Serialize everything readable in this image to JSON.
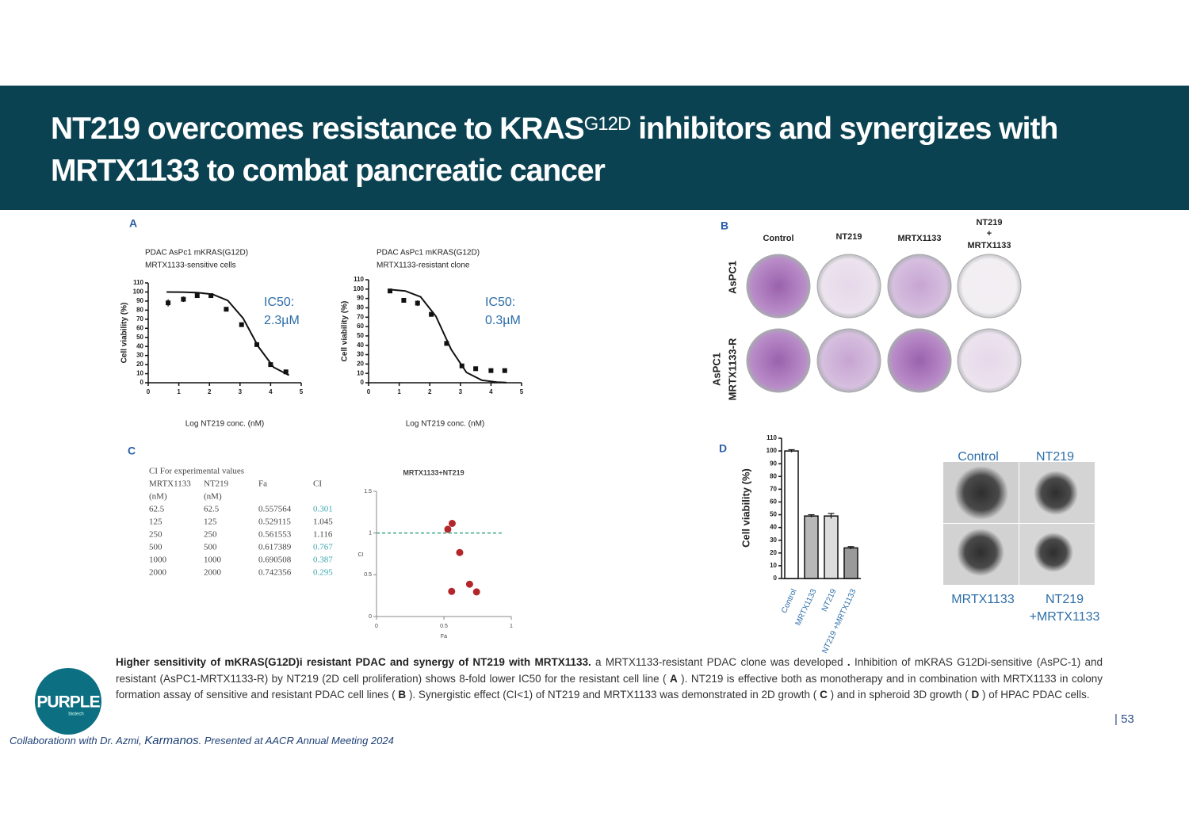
{
  "header": {
    "title_start": "NT219 overcomes resistance to KRAS",
    "title_superscript": "G12D",
    "title_end": "inhibitors and synergizes with MRTX1133 to combat pancreatic cancer"
  },
  "panel_a": {
    "letter": "A",
    "charts": [
      {
        "type": "scatter",
        "subtitle": [
          "PDAC AsPc1 mKRAS(G12D)",
          "MRTX1133-sensitive cells"
        ],
        "y_label": "Cell viability (%)",
        "x_label": "Log NT219 conc. (nM)",
        "annotation": [
          "IC50:",
          "2.3µM"
        ],
        "xlim": [
          0,
          5
        ],
        "xticks": [
          0,
          1,
          2,
          3,
          4,
          5
        ],
        "ylim": [
          0,
          110
        ],
        "yticks": [
          0,
          10,
          20,
          30,
          40,
          50,
          60,
          70,
          80,
          90,
          100,
          110
        ],
        "x": [
          0.65,
          1.15,
          1.6,
          2.05,
          2.55,
          3.05,
          3.55,
          4.0,
          4.5
        ],
        "values": [
          88,
          92,
          96,
          96,
          81,
          64,
          42,
          20,
          12
        ],
        "errors": [
          4,
          3,
          1,
          2,
          1,
          2,
          1,
          1,
          1
        ],
        "fit": {
          "x": [
            0.6,
            1.1,
            1.6,
            2.1,
            2.6,
            3.1,
            3.6,
            4.1,
            4.6
          ],
          "values": [
            100,
            99.8,
            99.3,
            97.5,
            90.6,
            71.1,
            39.7,
            17,
            8.3
          ]
        }
      },
      {
        "type": "scatter",
        "subtitle": [
          "PDAC AsPc1 mKRAS(G12D)",
          "MRTX1133-resistant clone"
        ],
        "y_label": "Cell viability (%)",
        "x_label": "Log NT219 conc. (nM)",
        "annotation": [
          "IC50:",
          "0.3µM"
        ],
        "xlim": [
          0,
          5
        ],
        "xticks": [
          0,
          1,
          2,
          3,
          4,
          5
        ],
        "ylim": [
          0,
          110
        ],
        "yticks": [
          0,
          10,
          20,
          30,
          40,
          50,
          60,
          70,
          80,
          90,
          100,
          110
        ],
        "x": [
          0.7,
          1.15,
          1.6,
          2.05,
          2.55,
          3.05,
          3.5,
          4.0,
          4.45
        ],
        "values": [
          98,
          88,
          85,
          73,
          42,
          18,
          15,
          13,
          13
        ],
        "errors": [
          1,
          1,
          3,
          1,
          1,
          1,
          1,
          1,
          1
        ],
        "fit": {
          "x": [
            0.7,
            1.2,
            1.7,
            2.2,
            2.7,
            3.2,
            3.7,
            4.2,
            4.5
          ],
          "values": [
            99.5,
            98,
            91.7,
            71,
            35.5,
            11,
            2.7,
            0.6,
            0.2
          ]
        }
      }
    ]
  },
  "panel_b": {
    "letter": "B",
    "columns": [
      "Control",
      "NT219",
      "MRTX1133",
      [
        "NT219",
        "+",
        "MRTX1133"
      ]
    ],
    "rows": [
      [
        "AsPC1"
      ],
      [
        "AsPC1",
        "MRTX1133-R"
      ]
    ]
  },
  "panel_c": {
    "letter": "C",
    "table": {
      "title": "CI For experimental values",
      "columns": [
        [
          "MRTX1133",
          "(nM)"
        ],
        [
          "NT219",
          "(nM)"
        ],
        [
          "Fa"
        ],
        [
          "CI"
        ]
      ],
      "rows": [
        [
          62.5,
          62.5,
          0.557564,
          0.301
        ],
        [
          125,
          125,
          0.529115,
          1.045
        ],
        [
          250,
          250,
          0.561553,
          1.116
        ],
        [
          500,
          500,
          0.617389,
          0.767
        ],
        [
          1000,
          1000,
          0.690508,
          0.387
        ],
        [
          2000,
          2000,
          0.742356,
          0.295
        ]
      ],
      "ci_colors": [
        "#3aa6b0",
        "#444",
        "#444",
        "#3aa6b0",
        "#3aa6b0",
        "#3aa6b0"
      ]
    },
    "chart": {
      "type": "scatter",
      "title": "MRTX1133+NT219",
      "x_label": "Fa",
      "y_label": "CI",
      "xlim": [
        0,
        1
      ],
      "xticks": [
        0,
        0.5,
        1
      ],
      "ylim": [
        0,
        1.5
      ],
      "yticks": [
        0,
        0.5,
        1,
        1.5
      ],
      "reference_line": 1,
      "color": "#b3262a",
      "reference_color": "#3aa68a"
    }
  },
  "panel_d": {
    "letter": "D",
    "chart": {
      "type": "bar",
      "y_label": "Cell viability (%)",
      "categories": [
        "Control",
        "MRTX1133",
        "NT219",
        "NT219 +MRTX1133"
      ],
      "values": [
        100,
        49,
        49,
        24
      ],
      "errors": [
        1,
        1,
        2,
        1
      ],
      "colors": [
        "#ffffff",
        "#b8b8b8",
        "#dcdcdc",
        "#9a9a9a"
      ],
      "ylim": [
        0,
        110
      ],
      "yticks": [
        0,
        10,
        20,
        30,
        40,
        50,
        60,
        70,
        80,
        90,
        100,
        110
      ]
    },
    "spheroid_labels": [
      "Control",
      "NT219",
      "MRTX1133",
      [
        "NT219",
        "+MRTX1133"
      ]
    ]
  },
  "caption": [
    {
      "text": "Higher sensitivity of mKRAS(G12D)i resistant PDAC and synergy of NT219 with MRTX1133.",
      "bold": true
    },
    {
      "text": "a MRTX1133-resistant PDAC clone was developed",
      "bold": false
    },
    {
      "text": ".",
      "bold": true
    },
    {
      "text": "Inhibition of mKRAS G12Di-sensitive (AsPC-1) and resistant (AsPC1-MRTX1133-R) by NT219 (2D cell proliferation) shows 8-fold lower IC50 for the resistant cell line (",
      "bold": false
    },
    {
      "text": "A",
      "bold": true
    },
    {
      "text": "). NT219 is effective both as monotherapy and in combination with MRTX1133 in colony formation assay of sensitive and resistant PDAC cell lines (",
      "bold": false
    },
    {
      "text": "B",
      "bold": true
    },
    {
      "text": "). Synergistic effect (CI<1) of NT219 and MRTX1133 was demonstrated in 2D growth (",
      "bold": false
    },
    {
      "text": "C",
      "bold": true
    },
    {
      "text": ") and in spheroid 3D growth (",
      "bold": false
    },
    {
      "text": "D",
      "bold": true
    },
    {
      "text": ") of HPAC PDAC cells.",
      "bold": false
    }
  ],
  "logo": {
    "name": "PURPLE",
    "sub": "biotech"
  },
  "page_number": "| 53",
  "footer": [
    "Collaborationn with Dr. Azmi, ",
    "Karmanos",
    ". Presented at AACR Annual Meeting 2024"
  ]
}
